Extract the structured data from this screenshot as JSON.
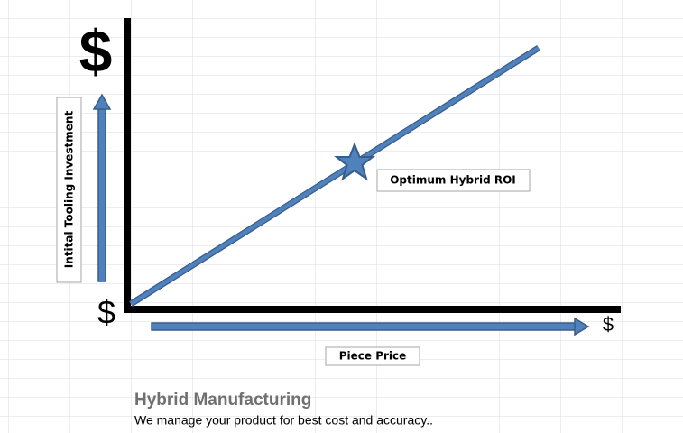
{
  "diagram": {
    "y_axis_top_symbol": "$",
    "origin_symbol": "$",
    "x_axis_end_symbol": "$",
    "y_axis_label": "Intital Tooling Investment",
    "x_axis_label": "Piece Price",
    "point_label": "Optimum Hybrid ROI"
  },
  "footer": {
    "title": "Hybrid Manufacturing",
    "subtitle": "We manage your product for best cost and accuracy.."
  }
}
